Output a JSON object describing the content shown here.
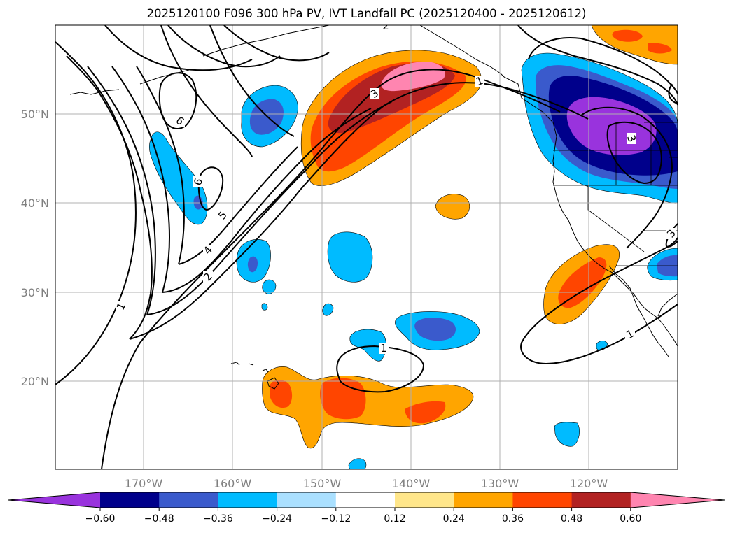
{
  "title": "2025120100 F096 300 hPa PV, IVT Landfall PC (2025120400 - 2025120612)",
  "map": {
    "lat_labels": [
      "50°N",
      "40°N",
      "30°N",
      "20°N"
    ],
    "lon_labels": [
      "170°W",
      "160°W",
      "150°W",
      "140°W",
      "130°W",
      "120°W"
    ],
    "contour_labels": [
      "2",
      "6",
      "6",
      "5",
      "4",
      "2",
      "1",
      "3",
      "3",
      "1",
      "1",
      "1",
      "3"
    ]
  },
  "colorbar": {
    "ticks": [
      "−0.60",
      "−0.48",
      "−0.36",
      "−0.24",
      "−0.12",
      "0.12",
      "0.24",
      "0.36",
      "0.48",
      "0.60"
    ],
    "colors": [
      "#9933dd",
      "#00008b",
      "#3a5acc",
      "#00bbff",
      "#aae0ff",
      "#ffffff",
      "#ffe68a",
      "#ffa500",
      "#ff4500",
      "#b22222",
      "#ff85b0"
    ]
  }
}
